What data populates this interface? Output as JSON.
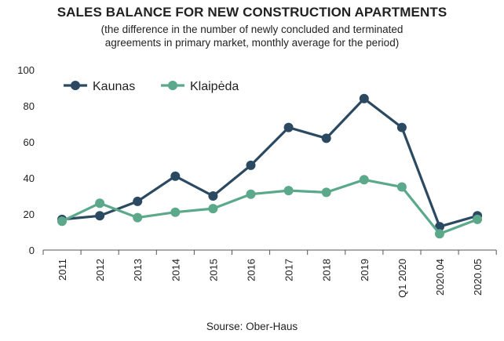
{
  "chart_data": {
    "type": "line",
    "title": "SALES BALANCE FOR NEW CONSTRUCTION APARTMENTS",
    "subtitle_lines": [
      "(the difference in the number of newly concluded and terminated",
      "agreements in primary market, monthly average for the period)"
    ],
    "categories": [
      "2011",
      "2012",
      "2013",
      "2014",
      "2015",
      "2016",
      "2017",
      "2018",
      "2019",
      "Q1 2020",
      "2020.04",
      "2020.05"
    ],
    "series": [
      {
        "name": "Kaunas",
        "color": "#2b4a62",
        "values": [
          17,
          19,
          27,
          41,
          30,
          47,
          68,
          62,
          84,
          68,
          13,
          19
        ]
      },
      {
        "name": "Klaipėda",
        "color": "#5ba88b",
        "values": [
          16,
          26,
          18,
          21,
          23,
          31,
          33,
          32,
          39,
          35,
          9,
          17
        ]
      }
    ],
    "ylim": [
      0,
      100
    ],
    "yticks": [
      0,
      20,
      40,
      60,
      80,
      100
    ],
    "grid": false,
    "legend": "top-left",
    "source": "Sourse: Ober-Haus"
  }
}
